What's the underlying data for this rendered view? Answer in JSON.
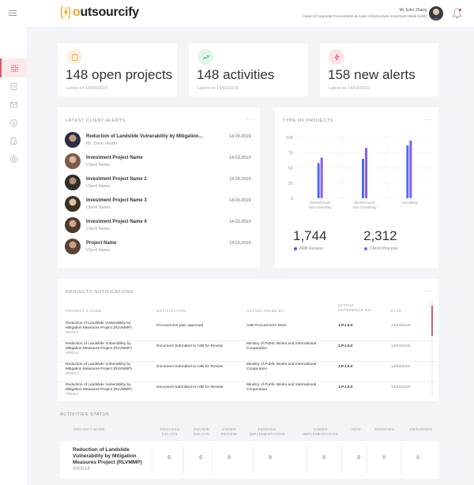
{
  "header": {
    "logo_text_pre": "",
    "logo_text_o": "o",
    "logo_text_post": "utsourcify",
    "user_name": "Mr. Eder Zhang",
    "user_role": "Head of Corporate Procurement at Asian Infrastructure Investment Bank (AIIB)"
  },
  "sidebar": {
    "items": [
      {
        "icon": "grid-icon",
        "active": true
      },
      {
        "icon": "document-icon",
        "active": false
      },
      {
        "icon": "mail-icon",
        "active": false
      },
      {
        "icon": "dollar-icon",
        "active": false
      },
      {
        "icon": "contract-icon",
        "active": false
      },
      {
        "icon": "badge-icon",
        "active": false
      }
    ]
  },
  "stats": [
    {
      "value": "148",
      "label": "open projects",
      "date": "Latest on 14/03/2019",
      "color": "#f5a623",
      "icon": "clipboard-icon"
    },
    {
      "value": "148",
      "label": "activities",
      "date": "Latest on 14/03/2019",
      "color": "#3fb66a",
      "icon": "trend-icon"
    },
    {
      "value": "158",
      "label": "new alerts",
      "date": "Latest on 14/03/2019",
      "color": "#e05a63",
      "icon": "alert-icon"
    }
  ],
  "alerts": {
    "title": "LATEST CLIENT ALERTS",
    "menu": "···",
    "items": [
      {
        "title": "Reduction of Landslide Vulnerability by Mitigation...",
        "sub": "Mr. Soun Vieath",
        "date": "14.03.2019"
      },
      {
        "title": "Investment Project Name",
        "sub": "Client Name",
        "date": "14.03.2019"
      },
      {
        "title": "Investment Project Name 2",
        "sub": "Client Name",
        "date": "14.03.2019"
      },
      {
        "title": "Investment Project Name 3",
        "sub": "Client Name",
        "date": "14.03.2019"
      },
      {
        "title": "Investment Project Name 4",
        "sub": "Client Name",
        "date": "14.03.2019"
      },
      {
        "title": "Project Name",
        "sub": "Client Name",
        "date": "14.03.2019"
      }
    ]
  },
  "types": {
    "title": "TYPE OF PROJECTS",
    "menu": "···",
    "legend": [
      {
        "value": "1,744",
        "label": "AIIB Review",
        "color": "#3b5bdb"
      },
      {
        "value": "2,312",
        "label": "Client Process",
        "color": "#8b5cf6"
      }
    ]
  },
  "chart_data": {
    "type": "bar",
    "categories": [
      "Works/Goods Non-consulting",
      "Works/Goods/ Non-consulting/ Consulting",
      "Consulting"
    ],
    "series": [
      {
        "name": "AIIB Review",
        "values": [
          58,
          65,
          87
        ],
        "color": "#4c6ef5"
      },
      {
        "name": "Client Process",
        "values": [
          67,
          83,
          95
        ],
        "color": "#8b5cf6"
      }
    ],
    "yticks": [
      "100",
      "75",
      "50",
      "25",
      "0"
    ],
    "ylim": [
      0,
      100
    ],
    "grid": true
  },
  "notifications": {
    "title": "PROJECTS NOTIFICATIONS",
    "menu": "···",
    "columns": [
      "PROJECT'S NAME",
      "NOTIFICATION",
      "ACTION TAKEN BY",
      "STATUS REFERENCE No.",
      "DATE"
    ],
    "rows": [
      {
        "name": "Reduction of Landslide Vulnerability by Mitigation Measures Project (RLVMMP)",
        "ref": "#00014",
        "notification": "Procurement plan approved",
        "action": "AIIB Procurement Team",
        "status": "1.P.1.5.0",
        "date": "14/03/2019"
      },
      {
        "name": "Reduction of Landslide Vulnerability by Mitigation Measures Project (RLVMMP)",
        "ref": "#00014",
        "notification": "Document Submitted to AIIB for Review",
        "action": "Ministry of Public Works and International Cooperation",
        "status": "1.P.1.5.0",
        "date": "14/03/2019"
      },
      {
        "name": "Reduction of Landslide Vulnerability by Mitigation Measures Project (RLVMMP)",
        "ref": "#00014",
        "notification": "Document Submitted to AIIB for Review",
        "action": "Ministry of Public Works and International Cooperation",
        "status": "1.P.1.5.0",
        "date": "14/03/2019"
      },
      {
        "name": "Reduction of Landslide Vulnerability by Mitigation Measures Project (RLVMMP)",
        "ref": "#00014",
        "notification": "Document Submitted to AIIB for Review",
        "action": "Ministry of Public Works and International Cooperation",
        "status": "1.P.1.5.0",
        "date": "14/03/2019"
      }
    ]
  },
  "activities": {
    "title": "ACTIVITIES STATUS",
    "columns": [
      "PROJECT NAME",
      "PROCESS DELAYS",
      "REVIEW DELAYS",
      "UNDER REVIEW",
      "PENDING IMPLEMENTATION",
      "UNDER IMPLEMENTATION",
      "NEW",
      "MODIFIED",
      "RETURNED"
    ],
    "row": {
      "name": "Reduction of Landslide Vulnerability by Mitigation Measures Project (RLVMMP)",
      "ref": "#00014",
      "values": [
        "0",
        "0",
        "0",
        "0",
        "0",
        "0",
        "0",
        "0"
      ]
    }
  }
}
